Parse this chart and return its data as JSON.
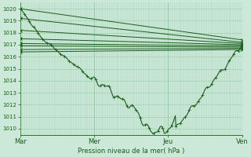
{
  "bg_color": "#cce8d8",
  "grid_color": "#99ccaa",
  "line_color": "#1a5c1a",
  "ylim": [
    1009.5,
    1020.5
  ],
  "yticks": [
    1010,
    1011,
    1012,
    1013,
    1014,
    1015,
    1016,
    1017,
    1018,
    1019,
    1020
  ],
  "xtick_labels": [
    "Mar",
    "Mer",
    "Jeu",
    "Ven"
  ],
  "xtick_positions": [
    0.0,
    0.333,
    0.667,
    1.0
  ],
  "xlabel": "Pression niveau de la mer( hPa )",
  "forecast_starts": [
    1020.0,
    1019.2,
    1018.2,
    1017.5,
    1017.1,
    1016.9,
    1016.6,
    1016.4
  ],
  "forecast_ends": [
    1017.4,
    1017.2,
    1017.1,
    1017.0,
    1016.9,
    1016.8,
    1016.7,
    1016.6
  ]
}
